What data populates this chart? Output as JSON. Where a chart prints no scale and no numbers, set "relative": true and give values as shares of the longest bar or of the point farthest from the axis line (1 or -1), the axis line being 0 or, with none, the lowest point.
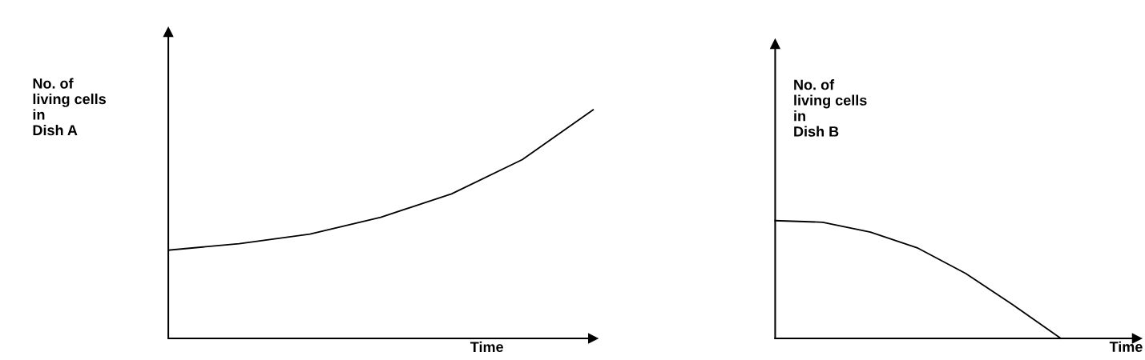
{
  "chart_data": [
    {
      "type": "line",
      "relative": true,
      "ylabel": "No. of\nliving cells\nin\nDish A",
      "xlabel": "Time",
      "categories": [
        null,
        null,
        null,
        null,
        null,
        null,
        null
      ],
      "series": [
        {
          "color": "#000000",
          "values": [
            0.386,
            0.414,
            0.456,
            0.53,
            0.632,
            0.782,
            1
          ]
        }
      ]
    },
    {
      "type": "line",
      "relative": true,
      "ylabel": "No. of\nliving cells\nin\nDish B",
      "xlabel": "Time",
      "categories": [
        null,
        null,
        null,
        null,
        null,
        null,
        null
      ],
      "series": [
        {
          "color": "#000000",
          "values": [
            1,
            0.986,
            0.903,
            0.766,
            0.552,
            0.283,
            0
          ]
        }
      ]
    }
  ]
}
